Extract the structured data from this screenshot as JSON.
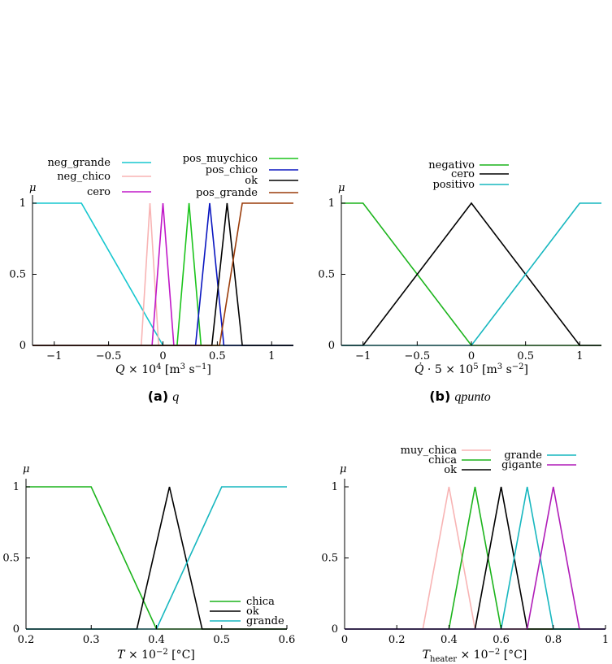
{
  "chart_data": [
    {
      "type": "line",
      "caption_letter": "(a)",
      "caption_name": "q",
      "xlabel": "Q × 10⁴ [m³ s⁻¹]",
      "ylabel": "μ",
      "xlim": [
        -1.2,
        1.2
      ],
      "ylim": [
        0,
        1
      ],
      "xticks": [
        -1,
        -0.5,
        0,
        0.5,
        1
      ],
      "xtick_labels": [
        "−1",
        "−0.5",
        "0",
        "0.5",
        "1"
      ],
      "yticks": [
        0,
        0.5,
        1
      ],
      "ytick_labels": [
        "0",
        "0.5",
        "1"
      ],
      "legend_left": [
        "neg_grande",
        "neg_chico",
        "cero"
      ],
      "legend_right": [
        "pos_muychico",
        "pos_chico",
        "ok",
        "pos_grande"
      ],
      "series": [
        {
          "name": "neg_grande",
          "color": "#17c7cf",
          "points": [
            [
              -1.2,
              1
            ],
            [
              -0.75,
              1
            ],
            [
              0,
              0
            ],
            [
              1.2,
              0
            ]
          ]
        },
        {
          "name": "neg_chico",
          "color": "#f8b4b4",
          "points": [
            [
              -1.2,
              0
            ],
            [
              -0.2,
              0
            ],
            [
              -0.12,
              1
            ],
            [
              -0.04,
              0
            ],
            [
              1.2,
              0
            ]
          ]
        },
        {
          "name": "cero",
          "color": "#c018c8",
          "points": [
            [
              -1.2,
              0
            ],
            [
              -0.1,
              0
            ],
            [
              0,
              1
            ],
            [
              0.1,
              0
            ],
            [
              1.2,
              0
            ]
          ]
        },
        {
          "name": "pos_muychico",
          "color": "#1cc41c",
          "points": [
            [
              -1.2,
              0
            ],
            [
              0.13,
              0
            ],
            [
              0.24,
              1
            ],
            [
              0.35,
              0
            ],
            [
              1.2,
              0
            ]
          ]
        },
        {
          "name": "pos_chico",
          "color": "#0a16c0",
          "points": [
            [
              -1.2,
              0
            ],
            [
              0.3,
              0
            ],
            [
              0.43,
              1
            ],
            [
              0.56,
              0
            ],
            [
              1.2,
              0
            ]
          ]
        },
        {
          "name": "ok",
          "color": "#000000",
          "points": [
            [
              -1.2,
              0
            ],
            [
              0.45,
              0
            ],
            [
              0.59,
              1
            ],
            [
              0.73,
              0
            ],
            [
              1.2,
              0
            ]
          ]
        },
        {
          "name": "pos_grande",
          "color": "#9a3c0a",
          "points": [
            [
              -1.2,
              0
            ],
            [
              0.52,
              0
            ],
            [
              0.73,
              1
            ],
            [
              1.2,
              1
            ]
          ]
        }
      ]
    },
    {
      "type": "line",
      "caption_letter": "(b)",
      "caption_name": "qpunto",
      "xlabel": "Q̇ · 5 × 10⁵ [m³ s⁻²]",
      "ylabel": "μ",
      "xlim": [
        -1.2,
        1.2
      ],
      "ylim": [
        0,
        1
      ],
      "xticks": [
        -1,
        -0.5,
        0,
        0.5,
        1
      ],
      "xtick_labels": [
        "−1",
        "−0.5",
        "0",
        "0.5",
        "1"
      ],
      "yticks": [
        0,
        0.5,
        1
      ],
      "ytick_labels": [
        "0",
        "0.5",
        "1"
      ],
      "legend": [
        "negativo",
        "cero",
        "positivo"
      ],
      "series": [
        {
          "name": "negativo",
          "color": "#1cb41c",
          "points": [
            [
              -1.2,
              1
            ],
            [
              -1,
              1
            ],
            [
              0,
              0
            ],
            [
              1.2,
              0
            ]
          ]
        },
        {
          "name": "cero",
          "color": "#000000",
          "points": [
            [
              -1.2,
              0
            ],
            [
              -1,
              0
            ],
            [
              0,
              1
            ],
            [
              1,
              0
            ],
            [
              1.2,
              0
            ]
          ]
        },
        {
          "name": "positivo",
          "color": "#17b7bf",
          "points": [
            [
              -1.2,
              0
            ],
            [
              0,
              0
            ],
            [
              1,
              1
            ],
            [
              1.2,
              1
            ]
          ]
        }
      ]
    },
    {
      "type": "line",
      "xlabel": "T × 10⁻² [°C]",
      "ylabel": "μ",
      "xlim": [
        0.2,
        0.6
      ],
      "ylim": [
        0,
        1
      ],
      "xticks": [
        0.2,
        0.3,
        0.4,
        0.5,
        0.6
      ],
      "xtick_labels": [
        "0.2",
        "0.3",
        "0.4",
        "0.5",
        "0.6"
      ],
      "yticks": [
        0,
        0.5,
        1
      ],
      "ytick_labels": [
        "0",
        "0.5",
        "1"
      ],
      "legend": [
        "chica",
        "ok",
        "grande"
      ],
      "series": [
        {
          "name": "chica",
          "color": "#1cb41c",
          "points": [
            [
              0.2,
              1
            ],
            [
              0.3,
              1
            ],
            [
              0.4,
              0
            ],
            [
              0.6,
              0
            ]
          ]
        },
        {
          "name": "ok",
          "color": "#000000",
          "points": [
            [
              0.2,
              0
            ],
            [
              0.37,
              0
            ],
            [
              0.42,
              1
            ],
            [
              0.47,
              0
            ],
            [
              0.6,
              0
            ]
          ]
        },
        {
          "name": "grande",
          "color": "#17b7bf",
          "points": [
            [
              0.2,
              0
            ],
            [
              0.4,
              0
            ],
            [
              0.5,
              1
            ],
            [
              0.6,
              1
            ]
          ]
        }
      ]
    },
    {
      "type": "line",
      "xlabel": "T_heater × 10⁻² [°C]",
      "ylabel": "μ",
      "xlim": [
        0,
        1
      ],
      "ylim": [
        0,
        1
      ],
      "xticks": [
        0,
        0.2,
        0.4,
        0.6,
        0.8,
        1
      ],
      "xtick_labels": [
        "0",
        "0.2",
        "0.4",
        "0.6",
        "0.8",
        "1"
      ],
      "yticks": [
        0,
        0.5,
        1
      ],
      "ytick_labels": [
        "0",
        "0.5",
        "1"
      ],
      "legend_left": [
        "muy_chica",
        "chica",
        "ok"
      ],
      "legend_right": [
        "grande",
        "gigante"
      ],
      "series": [
        {
          "name": "muy_chica",
          "color": "#f8b4b4",
          "points": [
            [
              0,
              0
            ],
            [
              0.3,
              0
            ],
            [
              0.4,
              1
            ],
            [
              0.5,
              0
            ],
            [
              1,
              0
            ]
          ]
        },
        {
          "name": "chica",
          "color": "#1cb41c",
          "points": [
            [
              0,
              0
            ],
            [
              0.4,
              0
            ],
            [
              0.5,
              1
            ],
            [
              0.6,
              0
            ],
            [
              1,
              0
            ]
          ]
        },
        {
          "name": "ok",
          "color": "#000000",
          "points": [
            [
              0,
              0
            ],
            [
              0.5,
              0
            ],
            [
              0.6,
              1
            ],
            [
              0.7,
              0
            ],
            [
              1,
              0
            ]
          ]
        },
        {
          "name": "grande",
          "color": "#17b7bf",
          "points": [
            [
              0,
              0
            ],
            [
              0.6,
              0
            ],
            [
              0.7,
              1
            ],
            [
              0.8,
              0
            ],
            [
              1,
              0
            ]
          ]
        },
        {
          "name": "gigante",
          "color": "#b01cb8",
          "points": [
            [
              0,
              0
            ],
            [
              0.7,
              0
            ],
            [
              0.8,
              1
            ],
            [
              0.9,
              0
            ],
            [
              1,
              0
            ]
          ]
        }
      ]
    }
  ]
}
